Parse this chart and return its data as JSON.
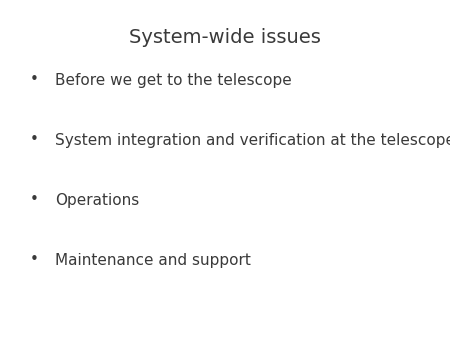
{
  "title": "System-wide issues",
  "bullet_points": [
    "Before we get to the telescope",
    "System integration and verification at the telescope",
    "Operations",
    "Maintenance and support"
  ],
  "background_color": "#ffffff",
  "text_color": "#3a3a3a",
  "title_fontsize": 14,
  "bullet_fontsize": 11,
  "bullet_char": "•"
}
